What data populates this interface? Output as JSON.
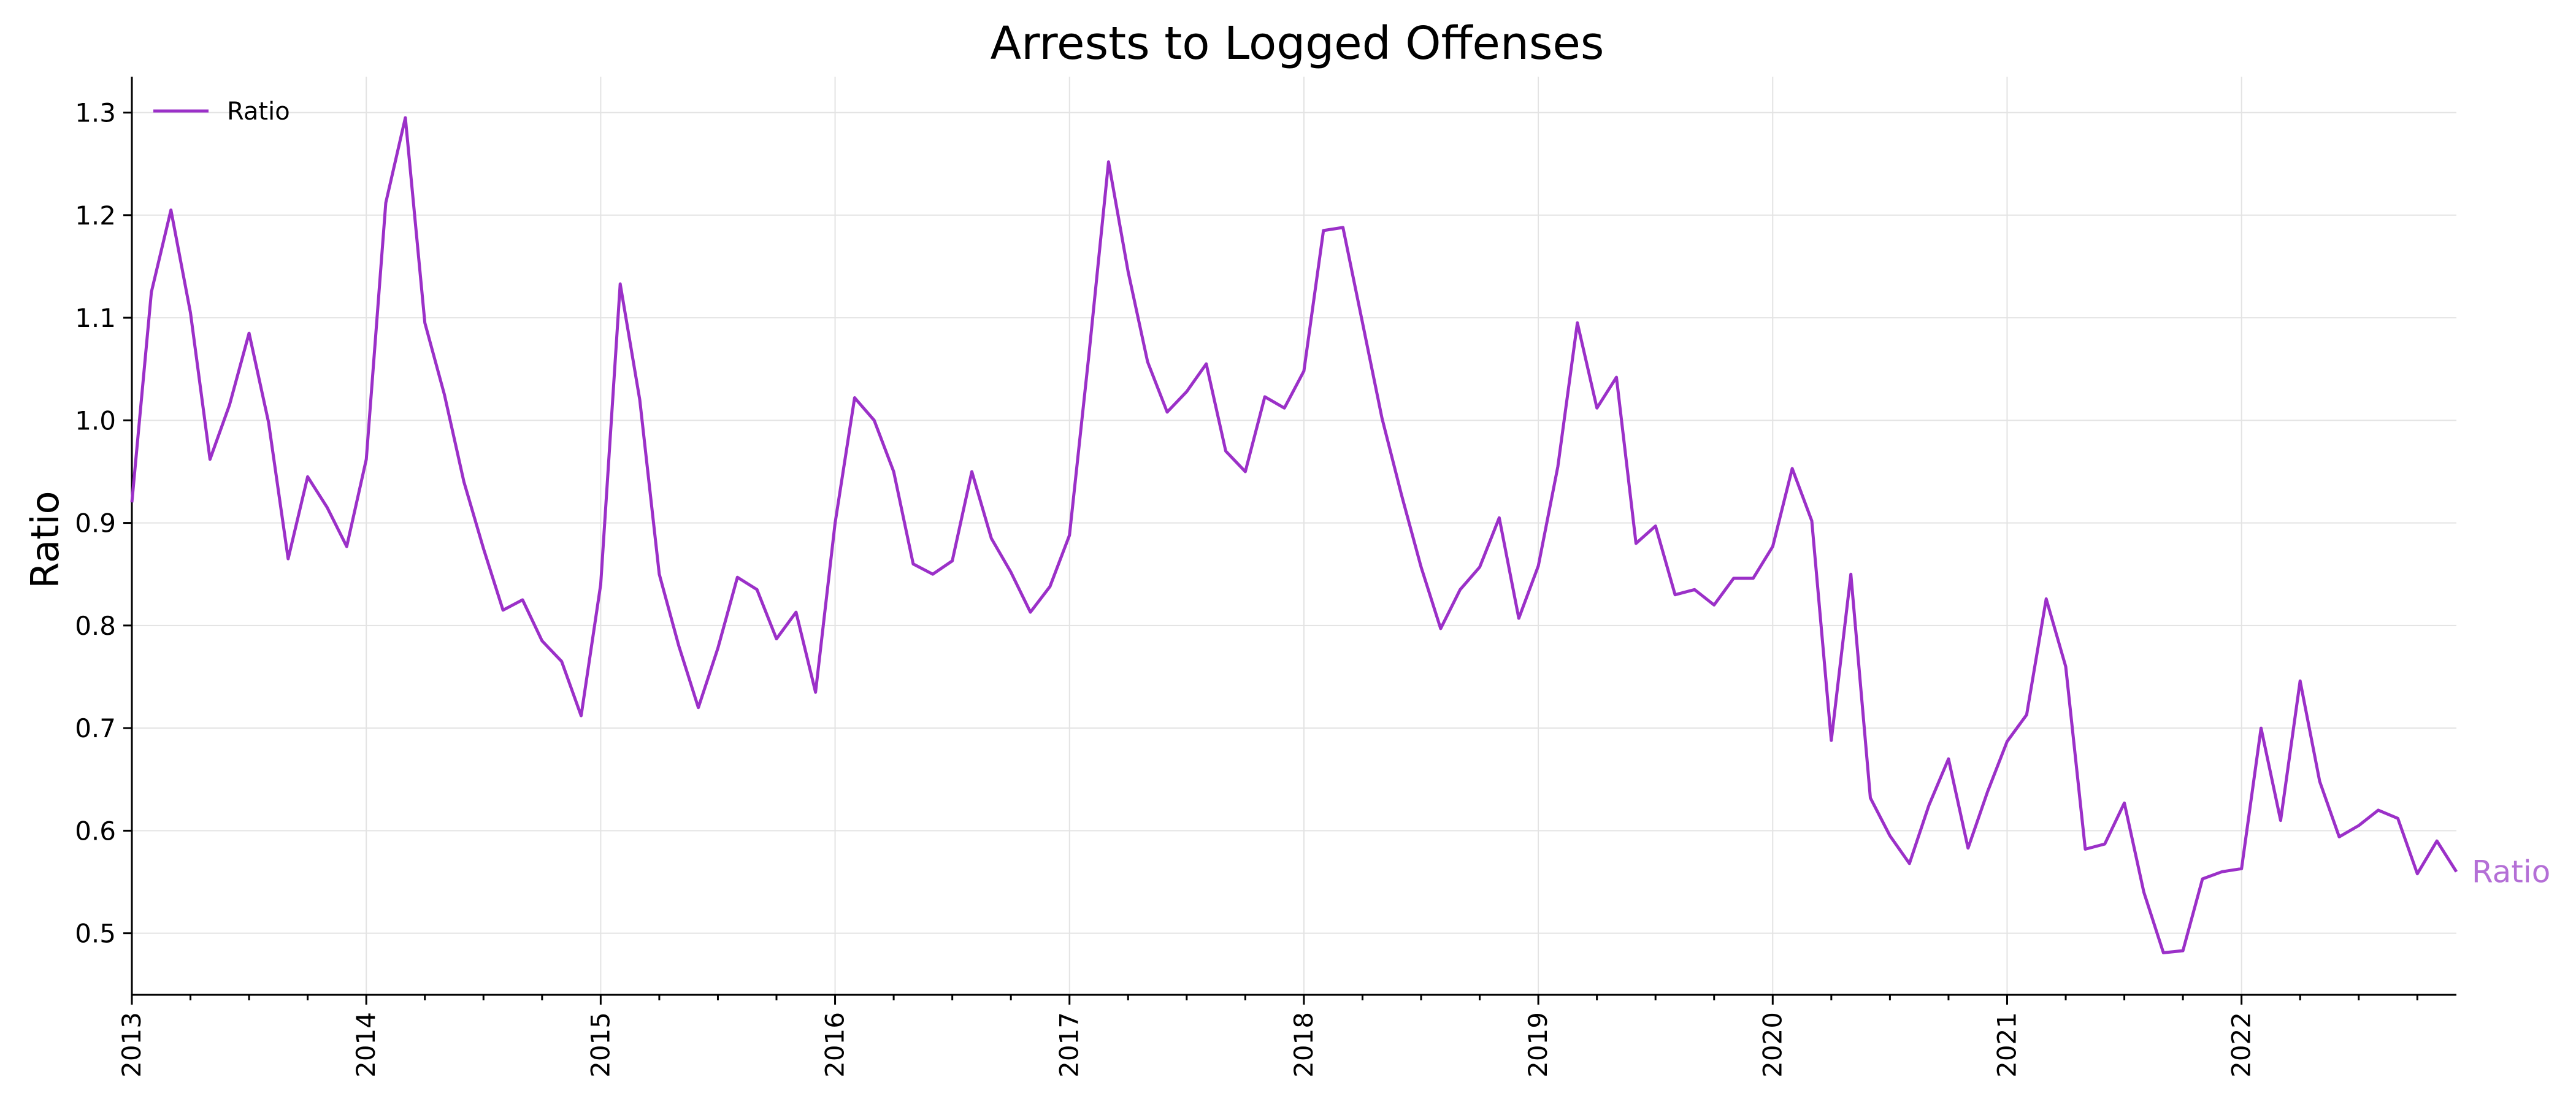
{
  "chart_data": {
    "type": "line",
    "title": "Arrests to Logged Offenses",
    "xlabel": "",
    "ylabel": "Ratio",
    "ylim": [
      0.44,
      1.335
    ],
    "xlim": [
      "2013-01",
      "2022-12"
    ],
    "yticks": [
      "0.5",
      "0.6",
      "0.7",
      "0.8",
      "0.9",
      "1.0",
      "1.1",
      "1.2",
      "1.3"
    ],
    "xticks": [
      "2013",
      "2014",
      "2015",
      "2016",
      "2017",
      "2018",
      "2019",
      "2020",
      "2021",
      "2022"
    ],
    "grid": true,
    "legend_position": "top-left",
    "line_color": "#9b30c8",
    "end_label_color": "#b46fd6",
    "series": [
      {
        "name": "Ratio",
        "end_label": "Ratio",
        "x": [
          "2013-01",
          "2013-02",
          "2013-03",
          "2013-04",
          "2013-05",
          "2013-06",
          "2013-07",
          "2013-08",
          "2013-09",
          "2013-10",
          "2013-11",
          "2013-12",
          "2014-01",
          "2014-02",
          "2014-03",
          "2014-04",
          "2014-05",
          "2014-06",
          "2014-07",
          "2014-08",
          "2014-09",
          "2014-10",
          "2014-11",
          "2014-12",
          "2015-01",
          "2015-02",
          "2015-03",
          "2015-04",
          "2015-05",
          "2015-06",
          "2015-07",
          "2015-08",
          "2015-09",
          "2015-10",
          "2015-11",
          "2015-12",
          "2016-01",
          "2016-02",
          "2016-03",
          "2016-04",
          "2016-05",
          "2016-06",
          "2016-07",
          "2016-08",
          "2016-09",
          "2016-10",
          "2016-11",
          "2016-12",
          "2017-01",
          "2017-02",
          "2017-03",
          "2017-04",
          "2017-05",
          "2017-06",
          "2017-07",
          "2017-08",
          "2017-09",
          "2017-10",
          "2017-11",
          "2017-12",
          "2018-01",
          "2018-02",
          "2018-03",
          "2018-04",
          "2018-05",
          "2018-06",
          "2018-07",
          "2018-08",
          "2018-09",
          "2018-10",
          "2018-11",
          "2018-12",
          "2019-01",
          "2019-02",
          "2019-03",
          "2019-04",
          "2019-05",
          "2019-06",
          "2019-07",
          "2019-08",
          "2019-09",
          "2019-10",
          "2019-11",
          "2019-12",
          "2020-01",
          "2020-02",
          "2020-03",
          "2020-04",
          "2020-05",
          "2020-06",
          "2020-07",
          "2020-08",
          "2020-09",
          "2020-10",
          "2020-11",
          "2020-12",
          "2021-01",
          "2021-02",
          "2021-03",
          "2021-04",
          "2021-05",
          "2021-06",
          "2021-07",
          "2021-08",
          "2021-09",
          "2021-10",
          "2021-11",
          "2021-12",
          "2022-01",
          "2022-02",
          "2022-03",
          "2022-04",
          "2022-05",
          "2022-06",
          "2022-07",
          "2022-08",
          "2022-09",
          "2022-10",
          "2022-11",
          "2022-12"
        ],
        "values": [
          0.92,
          1.125,
          1.205,
          1.105,
          0.962,
          1.015,
          1.085,
          0.998,
          0.865,
          0.945,
          0.915,
          0.877,
          0.962,
          1.212,
          1.295,
          1.095,
          1.025,
          0.94,
          0.875,
          0.815,
          0.825,
          0.785,
          0.765,
          0.712,
          0.84,
          1.133,
          1.02,
          0.85,
          0.78,
          0.72,
          0.778,
          0.847,
          0.835,
          0.787,
          0.813,
          0.735,
          0.9,
          1.022,
          1.0,
          0.95,
          0.86,
          0.85,
          0.863,
          0.95,
          0.885,
          0.852,
          0.813,
          0.838,
          0.888,
          1.065,
          1.252,
          1.145,
          1.057,
          1.008,
          1.028,
          1.055,
          0.97,
          0.95,
          1.023,
          1.012,
          1.048,
          1.185,
          1.188,
          1.095,
          1.002,
          0.927,
          0.857,
          0.797,
          0.835,
          0.857,
          0.905,
          0.807,
          0.858,
          0.955,
          1.095,
          1.012,
          1.042,
          0.88,
          0.897,
          0.83,
          0.835,
          0.82,
          0.846,
          0.846,
          0.877,
          0.953,
          0.902,
          0.688,
          0.85,
          0.632,
          0.595,
          0.568,
          0.625,
          0.67,
          0.583,
          0.638,
          0.687,
          0.713,
          0.826,
          0.76,
          0.582,
          0.587,
          0.627,
          0.54,
          0.481,
          0.483,
          0.553,
          0.56,
          0.563,
          0.7,
          0.61,
          0.746,
          0.648,
          0.594,
          0.605,
          0.62,
          0.612,
          0.558,
          0.59,
          0.56
        ]
      }
    ]
  }
}
